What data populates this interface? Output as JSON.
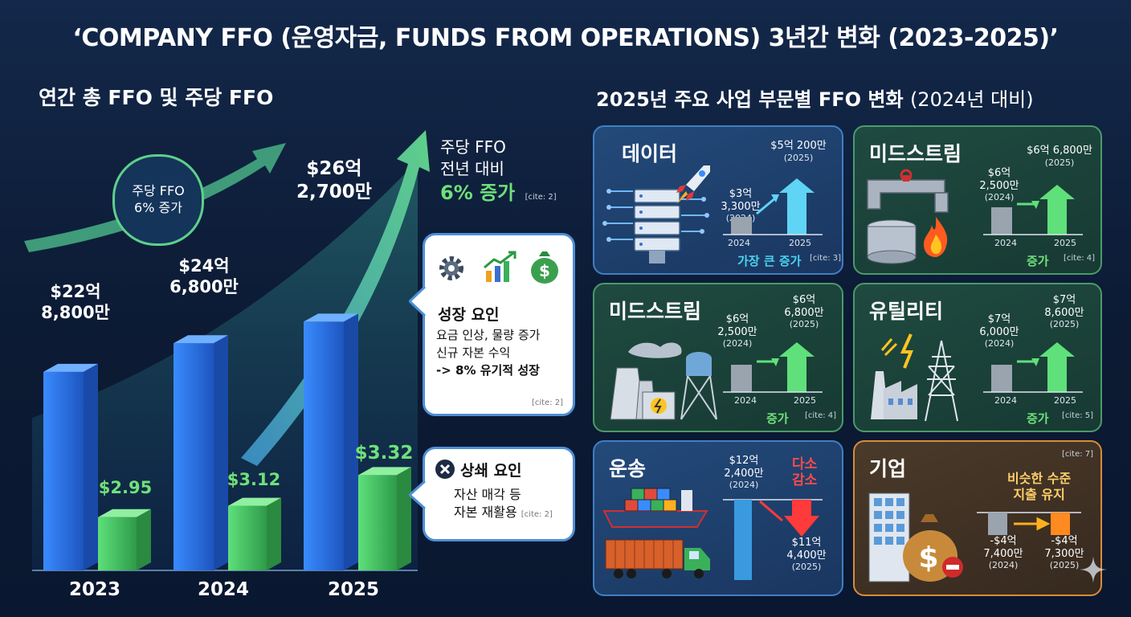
{
  "title": "‘COMPANY FFO (운영자금, FUNDS FROM OPERATIONS) 3년간 변화 (2023-2025)’",
  "left": {
    "heading": "연간 총 FFO 및 주당 FFO",
    "circle_label_1": "주당 FFO",
    "circle_label_2": "6% 증가",
    "side_note_1": "주당 FFO",
    "side_note_2": "전년 대비",
    "side_note_3": "6% 증가",
    "side_cite": "[cite: 2]",
    "growth": {
      "title": "성장 요인",
      "line1": "요금 인상, 물량 증가",
      "line2": "신규 자본 수익",
      "line3": "-> 8% 유기적 성장",
      "cite": "[cite: 2]"
    },
    "offset": {
      "title": "상쇄 요인",
      "line1": "자산 매각 등",
      "line2": "자본 재활용",
      "cite": "[cite: 2]"
    }
  },
  "chart_data": [
    {
      "type": "bar",
      "categories": [
        "2023",
        "2024",
        "2025"
      ],
      "series": [
        {
          "values": [
            22.88,
            24.68,
            26.27
          ],
          "labels": [
            [
              "$22억",
              "8,800만"
            ],
            [
              "$24억",
              "6,800만"
            ],
            [
              "$26억",
              "2,700만"
            ]
          ]
        },
        {
          "values": [
            2.95,
            3.12,
            3.32
          ],
          "labels": [
            "$2.95",
            "$3.12",
            "$3.32"
          ]
        }
      ],
      "title": "연간 총 FFO 및 주당 FFO",
      "colors": {
        "total": "#2f7de0",
        "per_share": "#3fbf5a"
      }
    },
    {
      "type": "bar",
      "title": "2025년 주요 사업 부문별 FFO 변화",
      "subtitle": "(2024년 대비)",
      "categories": [
        "2024",
        "2025"
      ],
      "segments": [
        {
          "name": "데이터",
          "values": [
            3.33,
            5.02
          ],
          "label_2024": [
            "$3억",
            "3,300만",
            "(2024)"
          ],
          "label_2025": [
            "$5억 200만",
            "(2025)"
          ],
          "note": "가장 큰 증가",
          "cite": "[cite: 3]",
          "theme": "blue",
          "trend": "up"
        },
        {
          "name": "미드스트림",
          "values": [
            6.25,
            6.68
          ],
          "label_2024": [
            "$6억",
            "2,500만",
            "(2024)"
          ],
          "label_2025": [
            "$6억 6,800만",
            "(2025)"
          ],
          "note": "증가",
          "cite": "[cite: 4]",
          "theme": "green",
          "trend": "up"
        },
        {
          "name": "미드스트림",
          "values": [
            6.25,
            6.68
          ],
          "label_2024": [
            "$6억",
            "2,500만",
            "(2024)"
          ],
          "label_2025": [
            "$6억",
            "6,800만",
            "(2025)"
          ],
          "note": "증가",
          "cite": "[cite: 4]",
          "theme": "green",
          "trend": "up"
        },
        {
          "name": "유틸리티",
          "values": [
            7.6,
            7.86
          ],
          "label_2024": [
            "$7억",
            "6,000만",
            "(2024)"
          ],
          "label_2025": [
            "$7억",
            "8,600만",
            "(2025)"
          ],
          "note": "증가",
          "cite": "[cite: 5]",
          "theme": "green",
          "trend": "up"
        },
        {
          "name": "운송",
          "values": [
            12.24,
            11.44
          ],
          "label_2024": [
            "$12억",
            "2,400만",
            "(2024)"
          ],
          "label_2025": [
            "$11억",
            "4,400만",
            "(2025)"
          ],
          "note": "다소 감소",
          "cite": "",
          "theme": "blue",
          "trend": "down"
        },
        {
          "name": "기업",
          "values": [
            -4.74,
            -4.73
          ],
          "label_2024": [
            "-$4억",
            "7,400만",
            "(2024)"
          ],
          "label_2025": [
            "-$4억",
            "7,300만",
            "(2025)"
          ],
          "note": "비슷한 수준 지출 유지",
          "cite": "[cite: 7]",
          "theme": "orange",
          "trend": "flat"
        }
      ]
    }
  ],
  "right": {
    "heading": "2025년 주요 사업 부문별 FFO 변화",
    "heading_sub": "(2024년 대비)",
    "year_a": "2024",
    "year_b": "2025",
    "p6_note_1": "비슷한 수준",
    "p6_note_2": "지출 유지",
    "p5_note_1": "다소",
    "p5_note_2": "감소"
  },
  "icons": [
    "sparkle-icon",
    "rocket-icon",
    "server-icon",
    "gear-icon",
    "growth-chart-icon",
    "money-bag-icon",
    "close-icon",
    "pipeline-icon",
    "flame-icon",
    "power-plant-icon",
    "water-tower-icon",
    "transmission-tower-icon",
    "factory-icon",
    "ship-icon",
    "truck-icon",
    "office-building-icon"
  ]
}
